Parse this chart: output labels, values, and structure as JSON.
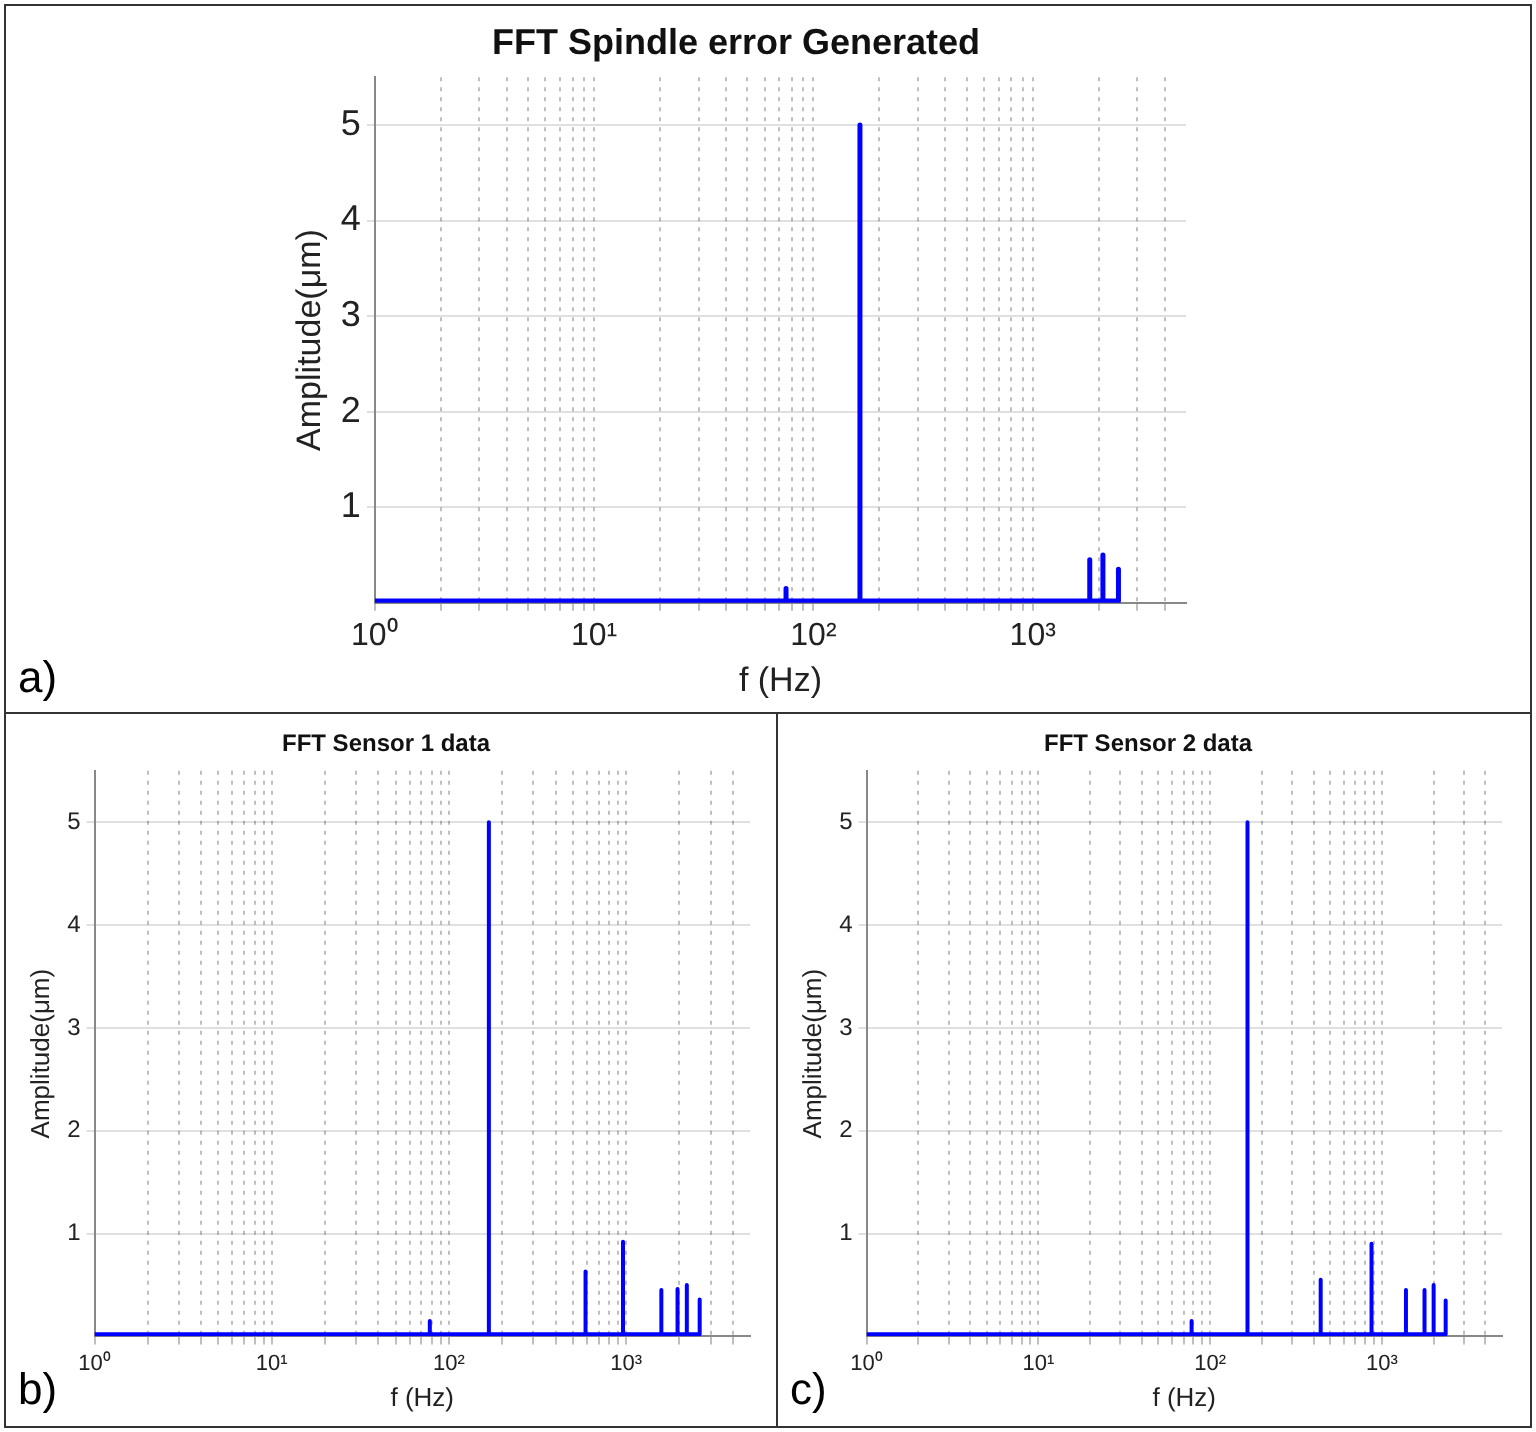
{
  "chart_data": [
    {
      "type": "line",
      "title": "FFT Spindle error Generated",
      "xlabel": "f (Hz)",
      "ylabel": "Amplitude(μm)",
      "annotations": [
        "a)"
      ],
      "log": "x",
      "grid": true,
      "marker": "none",
      "line_style": "solid",
      "xlim": [
        1,
        5000
      ],
      "ylim": [
        0,
        5.5
      ],
      "yticks": [
        1,
        2,
        3,
        4,
        5
      ],
      "xticks": [
        {
          "value": 1,
          "label": "10⁰"
        },
        {
          "value": 2,
          "label": null
        },
        {
          "value": 3,
          "label": null
        },
        {
          "value": 4,
          "label": null
        },
        {
          "value": 5,
          "label": null
        },
        {
          "value": 6,
          "label": null
        },
        {
          "value": 7,
          "label": null
        },
        {
          "value": 8,
          "label": null
        },
        {
          "value": 9,
          "label": null
        },
        {
          "value": 10,
          "label": "10¹"
        },
        {
          "value": 20,
          "label": null
        },
        {
          "value": 30,
          "label": null
        },
        {
          "value": 40,
          "label": null
        },
        {
          "value": 50,
          "label": null
        },
        {
          "value": 60,
          "label": null
        },
        {
          "value": 70,
          "label": null
        },
        {
          "value": 80,
          "label": null
        },
        {
          "value": 90,
          "label": null
        },
        {
          "value": 100,
          "label": "10²"
        },
        {
          "value": 200,
          "label": null
        },
        {
          "value": 300,
          "label": null
        },
        {
          "value": 400,
          "label": null
        },
        {
          "value": 500,
          "label": null
        },
        {
          "value": 600,
          "label": null
        },
        {
          "value": 700,
          "label": null
        },
        {
          "value": 800,
          "label": null
        },
        {
          "value": 900,
          "label": null
        },
        {
          "value": 1000,
          "label": "10³"
        },
        {
          "value": 2000,
          "label": null
        },
        {
          "value": 3000,
          "label": null
        },
        {
          "value": 4000,
          "label": null
        }
      ],
      "series": [
        {
          "color": "#0000ff",
          "x": [
            1,
            75,
            75,
            75,
            163,
            163,
            163,
            1820,
            1820,
            1820,
            2090,
            2090,
            2090,
            2460,
            2460,
            2460
          ],
          "values": [
            0.02,
            0.02,
            0.15,
            0.02,
            0.02,
            5.0,
            0.02,
            0.02,
            0.45,
            0.02,
            0.02,
            0.5,
            0.02,
            0.02,
            0.35,
            0.02
          ]
        }
      ]
    },
    {
      "type": "line",
      "title": "FFT Sensor 1 data",
      "xlabel": "f (Hz)",
      "ylabel": "Amplitude(μm)",
      "annotations": [
        "b)"
      ],
      "log": "x",
      "grid": true,
      "marker": "none",
      "line_style": "solid",
      "xlim": [
        1,
        5000
      ],
      "ylim": [
        0,
        5.5
      ],
      "yticks": [
        1,
        2,
        3,
        4,
        5
      ],
      "xticks": [
        {
          "value": 1,
          "label": "10⁰"
        },
        {
          "value": 2,
          "label": null
        },
        {
          "value": 3,
          "label": null
        },
        {
          "value": 4,
          "label": null
        },
        {
          "value": 5,
          "label": null
        },
        {
          "value": 6,
          "label": null
        },
        {
          "value": 7,
          "label": null
        },
        {
          "value": 8,
          "label": null
        },
        {
          "value": 9,
          "label": null
        },
        {
          "value": 10,
          "label": "10¹"
        },
        {
          "value": 20,
          "label": null
        },
        {
          "value": 30,
          "label": null
        },
        {
          "value": 40,
          "label": null
        },
        {
          "value": 50,
          "label": null
        },
        {
          "value": 60,
          "label": null
        },
        {
          "value": 70,
          "label": null
        },
        {
          "value": 80,
          "label": null
        },
        {
          "value": 90,
          "label": null
        },
        {
          "value": 100,
          "label": "10²"
        },
        {
          "value": 200,
          "label": null
        },
        {
          "value": 300,
          "label": null
        },
        {
          "value": 400,
          "label": null
        },
        {
          "value": 500,
          "label": null
        },
        {
          "value": 600,
          "label": null
        },
        {
          "value": 700,
          "label": null
        },
        {
          "value": 800,
          "label": null
        },
        {
          "value": 900,
          "label": null
        },
        {
          "value": 1000,
          "label": "10³"
        },
        {
          "value": 2000,
          "label": null
        },
        {
          "value": 3000,
          "label": null
        },
        {
          "value": 4000,
          "label": null
        }
      ],
      "series": [
        {
          "color": "#0000ff",
          "x": [
            1,
            78,
            78,
            78,
            168,
            168,
            168,
            590,
            590,
            590,
            960,
            960,
            960,
            1580,
            1580,
            1580,
            1950,
            1950,
            1950,
            2200,
            2200,
            2200,
            2600,
            2600,
            2600
          ],
          "values": [
            0.02,
            0.02,
            0.15,
            0.02,
            0.02,
            5.0,
            0.02,
            0.02,
            0.63,
            0.02,
            0.02,
            0.92,
            0.02,
            0.02,
            0.45,
            0.02,
            0.02,
            0.46,
            0.02,
            0.02,
            0.5,
            0.02,
            0.02,
            0.36,
            0.02
          ]
        }
      ]
    },
    {
      "type": "line",
      "title": "FFT Sensor 2 data",
      "xlabel": "f (Hz)",
      "ylabel": "Amplitude(μm)",
      "annotations": [
        "c)"
      ],
      "log": "x",
      "grid": true,
      "marker": "none",
      "line_style": "solid",
      "xlim": [
        1,
        5000
      ],
      "ylim": [
        0,
        5.5
      ],
      "yticks": [
        1,
        2,
        3,
        4,
        5
      ],
      "xticks": [
        {
          "value": 1,
          "label": "10⁰"
        },
        {
          "value": 2,
          "label": null
        },
        {
          "value": 3,
          "label": null
        },
        {
          "value": 4,
          "label": null
        },
        {
          "value": 5,
          "label": null
        },
        {
          "value": 6,
          "label": null
        },
        {
          "value": 7,
          "label": null
        },
        {
          "value": 8,
          "label": null
        },
        {
          "value": 9,
          "label": null
        },
        {
          "value": 10,
          "label": "10¹"
        },
        {
          "value": 20,
          "label": null
        },
        {
          "value": 30,
          "label": null
        },
        {
          "value": 40,
          "label": null
        },
        {
          "value": 50,
          "label": null
        },
        {
          "value": 60,
          "label": null
        },
        {
          "value": 70,
          "label": null
        },
        {
          "value": 80,
          "label": null
        },
        {
          "value": 90,
          "label": null
        },
        {
          "value": 100,
          "label": "10²"
        },
        {
          "value": 200,
          "label": null
        },
        {
          "value": 300,
          "label": null
        },
        {
          "value": 400,
          "label": null
        },
        {
          "value": 500,
          "label": null
        },
        {
          "value": 600,
          "label": null
        },
        {
          "value": 700,
          "label": null
        },
        {
          "value": 800,
          "label": null
        },
        {
          "value": 900,
          "label": null
        },
        {
          "value": 1000,
          "label": "10³"
        },
        {
          "value": 2000,
          "label": null
        },
        {
          "value": 3000,
          "label": null
        },
        {
          "value": 4000,
          "label": null
        }
      ],
      "series": [
        {
          "color": "#0000ff",
          "x": [
            1,
            78,
            78,
            78,
            165,
            165,
            165,
            440,
            440,
            440,
            870,
            870,
            870,
            1380,
            1380,
            1380,
            1770,
            1770,
            1770,
            2000,
            2000,
            2000,
            2350,
            2350,
            2350
          ],
          "values": [
            0.02,
            0.02,
            0.15,
            0.02,
            0.02,
            5.0,
            0.02,
            0.02,
            0.55,
            0.02,
            0.02,
            0.9,
            0.02,
            0.02,
            0.45,
            0.02,
            0.02,
            0.45,
            0.02,
            0.02,
            0.5,
            0.02,
            0.02,
            0.35,
            0.02
          ]
        }
      ]
    }
  ]
}
